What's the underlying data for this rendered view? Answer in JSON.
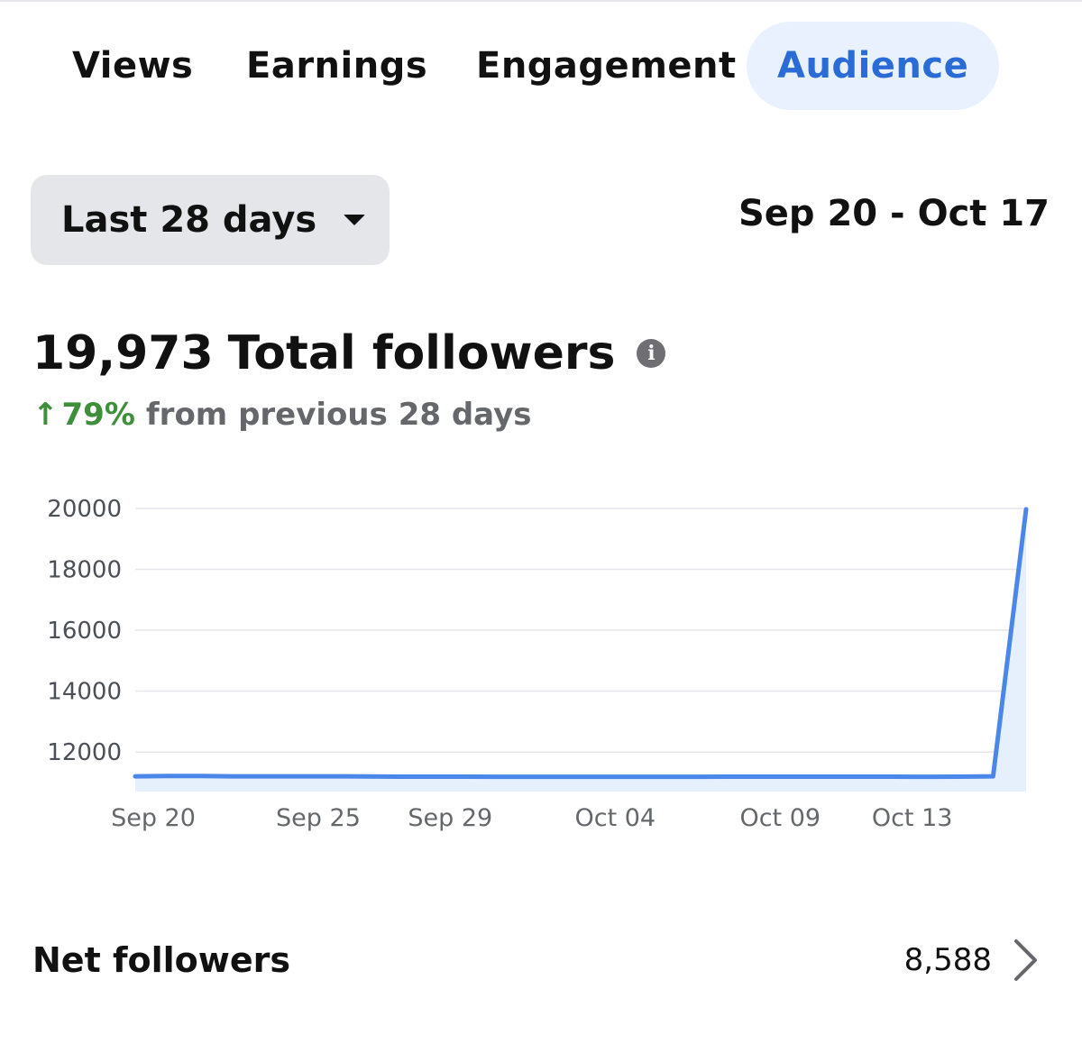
{
  "tabs": [
    {
      "label": "Views",
      "active": false
    },
    {
      "label": "Earnings",
      "active": false
    },
    {
      "label": "Engagement",
      "active": false
    },
    {
      "label": "Audience",
      "active": true
    }
  ],
  "filter": {
    "period_label": "Last 28 days",
    "caret_icon": "caret-down-icon",
    "date_range": "Sep 20 - Oct 17"
  },
  "summary": {
    "total_count": "19,973",
    "total_label": "Total followers",
    "info_icon": "info-icon",
    "change_arrow": "↑",
    "change_percent": "79%",
    "change_text": "from previous 28 days"
  },
  "colors": {
    "accent": "#2a6bd6",
    "active_tab_bg": "#e8f1fd",
    "positive": "#3e8e3a",
    "line": "#4a87e8",
    "area_fill": "#e6f0fc"
  },
  "chart_data": {
    "type": "area",
    "title": "",
    "xlabel": "",
    "ylabel": "",
    "x": [
      "Sep 20",
      "Sep 21",
      "Sep 22",
      "Sep 23",
      "Sep 24",
      "Sep 25",
      "Sep 26",
      "Sep 27",
      "Sep 28",
      "Sep 29",
      "Sep 30",
      "Oct 01",
      "Oct 02",
      "Oct 03",
      "Oct 04",
      "Oct 05",
      "Oct 06",
      "Oct 07",
      "Oct 08",
      "Oct 09",
      "Oct 10",
      "Oct 11",
      "Oct 12",
      "Oct 13",
      "Oct 14",
      "Oct 15",
      "Oct 16",
      "Oct 17"
    ],
    "series": [
      {
        "values": [
          11200,
          11210,
          11210,
          11200,
          11200,
          11200,
          11200,
          11195,
          11190,
          11190,
          11190,
          11185,
          11185,
          11185,
          11185,
          11185,
          11185,
          11185,
          11190,
          11190,
          11190,
          11190,
          11190,
          11190,
          11185,
          11190,
          11200,
          19973
        ]
      }
    ],
    "x_tick_labels": [
      "Sep 20",
      "Sep 25",
      "Sep 29",
      "Oct 04",
      "Oct 09",
      "Oct 13"
    ],
    "y_ticks": [
      12000,
      14000,
      16000,
      18000,
      20000
    ],
    "y_tick_labels": [
      "12000",
      "14000",
      "16000",
      "18000",
      "20000"
    ],
    "ylim": [
      10700,
      20000
    ],
    "grid": true,
    "legend": "none"
  },
  "net_followers": {
    "label": "Net followers",
    "value": "8,588",
    "chevron_icon": "chevron-right-icon"
  }
}
